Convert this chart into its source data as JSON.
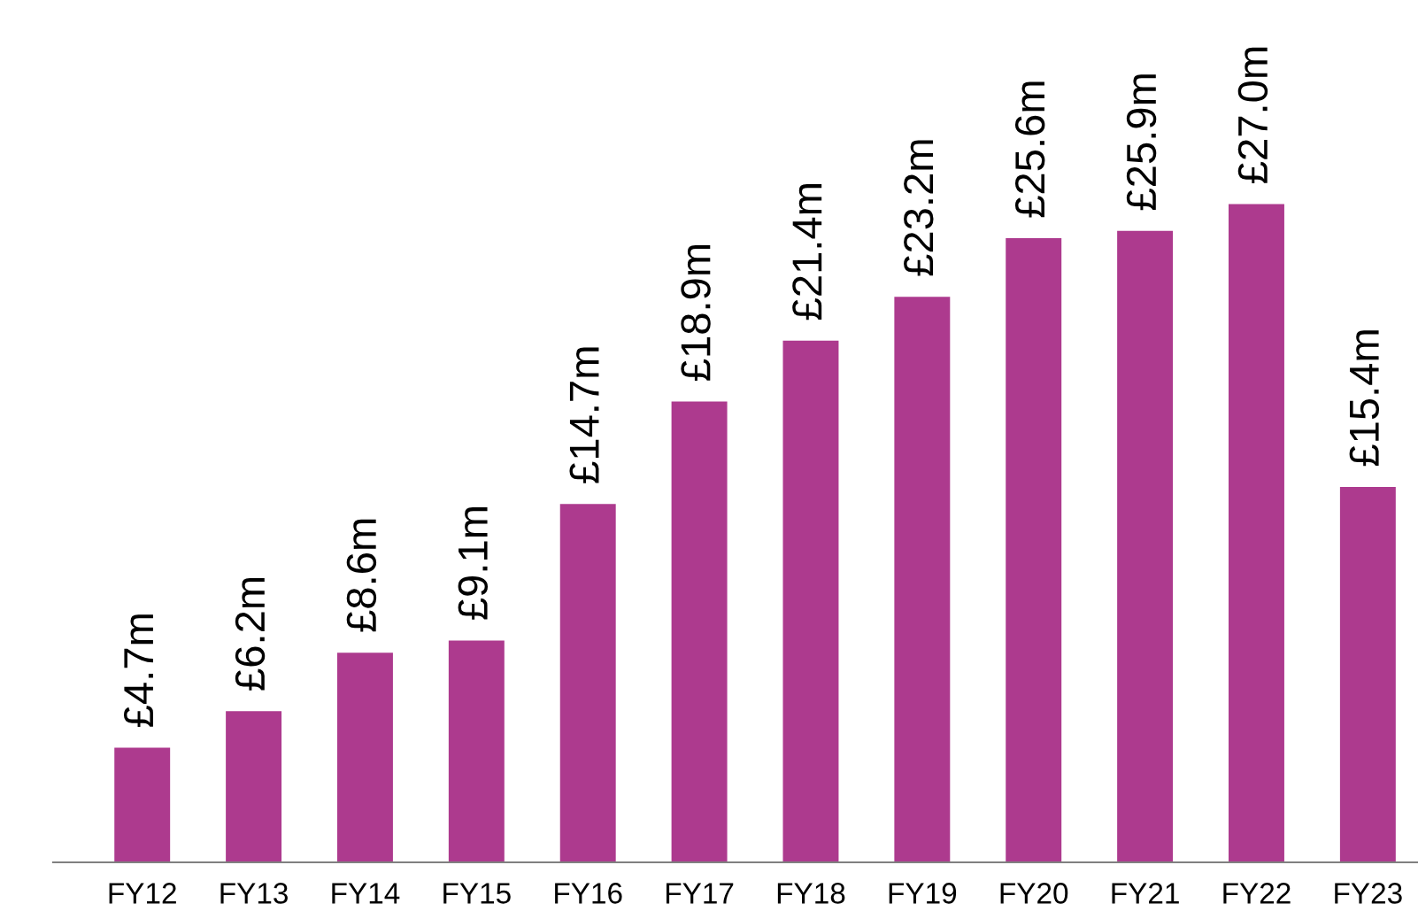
{
  "chart_data": {
    "type": "bar",
    "categories": [
      "FY12",
      "FY13",
      "FY14",
      "FY15",
      "FY16",
      "FY17",
      "FY18",
      "FY19",
      "FY20",
      "FY21",
      "FY22",
      "FY23"
    ],
    "values": [
      4.7,
      6.2,
      8.6,
      9.1,
      14.7,
      18.9,
      21.4,
      23.2,
      25.6,
      25.9,
      27.0,
      15.4
    ],
    "value_labels": [
      "£4.7m",
      "£6.2m",
      "£8.6m",
      "£9.1m",
      "£14.7m",
      "£18.9m",
      "£21.4m",
      "£23.2m",
      "£25.6m",
      "£25.9m",
      "£27.0m",
      "£15.4m"
    ],
    "color": "#ad3a8e",
    "grid": false,
    "legend": false
  }
}
